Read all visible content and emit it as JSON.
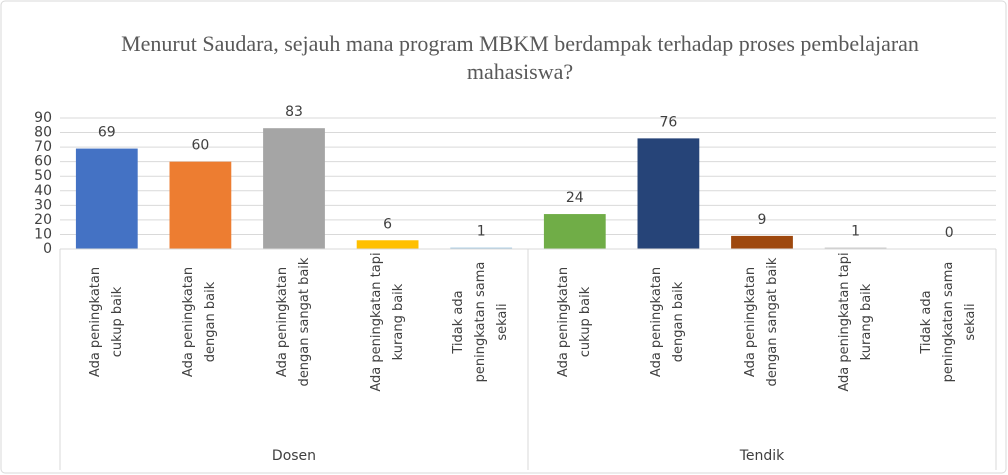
{
  "chart_data": {
    "type": "bar",
    "title": "Menurut Saudara, sejauh mana program MBKM berdampak terhadap proses pembelajaran mahasiswa?",
    "ylim": [
      0,
      90
    ],
    "yticks": [
      0,
      10,
      20,
      30,
      40,
      50,
      60,
      70,
      80,
      90
    ],
    "grid": true,
    "groups": [
      {
        "name": "Dosen",
        "categories": [
          "Ada peningkatan cukup baik",
          "Ada peningkatan dengan baik",
          "Ada peningkatan dengan sangat baik",
          "Ada peningkatan tapi kurang baik",
          "Tidak ada peningkatan sama sekali"
        ],
        "values": [
          69,
          60,
          83,
          6,
          1
        ],
        "colors": [
          "#4472c4",
          "#ed7d31",
          "#a5a5a5",
          "#ffc000",
          "#a9cce3"
        ]
      },
      {
        "name": "Tendik",
        "categories": [
          "Ada peningkatan cukup baik",
          "Ada peningkatan dengan baik",
          "Ada peningkatan dengan sangat baik",
          "Ada peningkatan tapi kurang baik",
          "Tidak ada peningkatan sama sekali"
        ],
        "values": [
          24,
          76,
          9,
          1,
          0
        ],
        "colors": [
          "#70ad47",
          "#264478",
          "#9e480e",
          "#c9c9c9",
          "#997300"
        ]
      }
    ]
  }
}
